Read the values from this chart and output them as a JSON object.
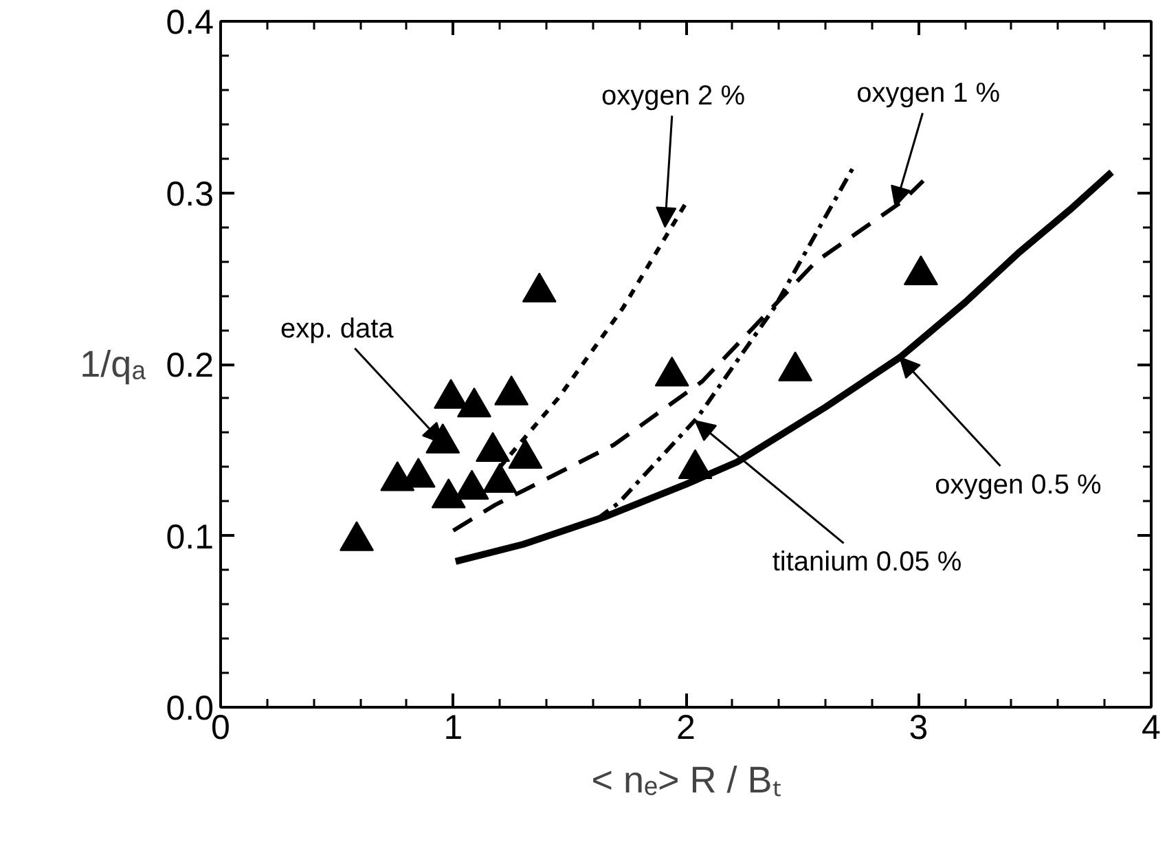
{
  "chart_data": {
    "type": "line",
    "xlabel": "< nₑ> R / Bₜ",
    "ylabel": "1/qₐ",
    "xlim": [
      0,
      4
    ],
    "ylim": [
      0,
      0.4
    ],
    "xticks": [
      0,
      1,
      2,
      3,
      4
    ],
    "yticks": [
      {
        "value": 0,
        "label": "0.0"
      },
      0.1,
      0.2,
      0.3,
      0.4
    ],
    "grid": false,
    "series": [
      {
        "type": "scatter",
        "marker": "triangle",
        "color": "#000000",
        "x": [
          0.585,
          0.99,
          1.09,
          1.25,
          0.955,
          1.17,
          1.31,
          0.76,
          0.85,
          0.98,
          1.08,
          1.2,
          1.37,
          1.94,
          2.47,
          3.01,
          2.04
        ],
        "values": [
          0.097,
          0.18,
          0.175,
          0.182,
          0.154,
          0.149,
          0.145,
          0.132,
          0.134,
          0.122,
          0.127,
          0.131,
          0.242,
          0.193,
          0.196,
          0.252,
          0.139
        ]
      },
      {
        "line_style": "solid",
        "color": "#000000",
        "x": [
          1.01,
          1.3,
          1.65,
          2.0,
          2.22,
          2.6,
          2.92,
          3.2,
          3.43,
          3.65,
          3.83
        ],
        "values": [
          0.085,
          0.095,
          0.111,
          0.13,
          0.143,
          0.175,
          0.204,
          0.236,
          0.265,
          0.29,
          0.312
        ]
      },
      {
        "line_style": "dotted",
        "color": "#000000",
        "x": [
          1.2,
          1.45,
          1.73,
          2.0
        ],
        "values": [
          0.14,
          0.18,
          0.233,
          0.294
        ]
      },
      {
        "line_style": "dashed",
        "color": "#000000",
        "x": [
          1.0,
          1.18,
          1.69,
          2.07,
          2.56,
          2.93,
          3.02
        ],
        "values": [
          0.103,
          0.118,
          0.153,
          0.19,
          0.26,
          0.295,
          0.307
        ]
      },
      {
        "line_style": "dashdot",
        "color": "#000000",
        "x": [
          1.62,
          1.71,
          2.05,
          2.38,
          2.72
        ],
        "values": [
          0.11,
          0.119,
          0.169,
          0.233,
          0.315
        ]
      }
    ],
    "annotations": [
      {
        "text": "exp. data",
        "x": 0.955,
        "y": 0.154
      },
      {
        "text": "oxygen 2 %",
        "x": 1.91,
        "y": 0.28
      },
      {
        "text": "oxygen 1 %",
        "x": 2.9,
        "y": 0.292
      },
      {
        "text": "titanium 0.05 %",
        "x": 2.04,
        "y": 0.167
      },
      {
        "text": "oxygen 0.5 %",
        "x": 2.92,
        "y": 0.204
      }
    ]
  }
}
